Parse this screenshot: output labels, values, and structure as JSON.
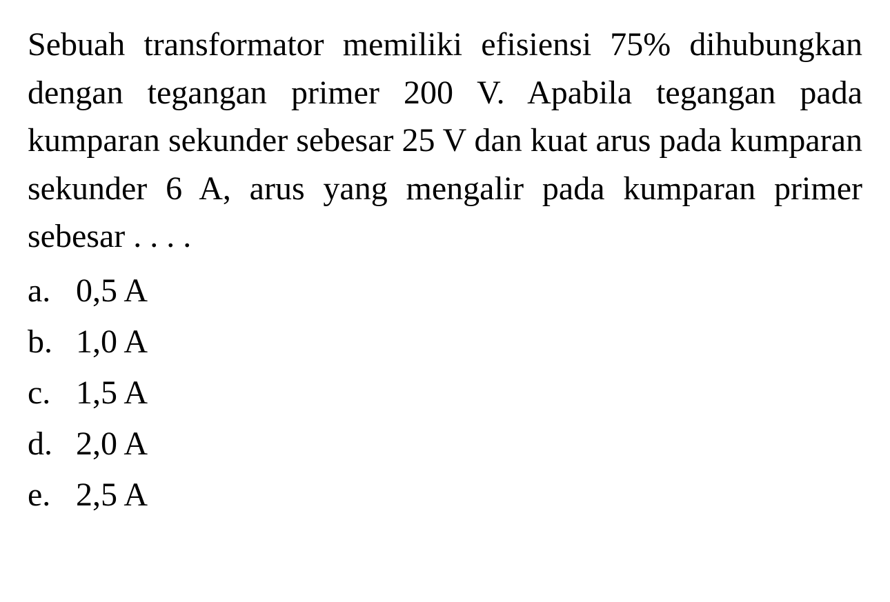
{
  "question": {
    "text": "Sebuah transformator memiliki efisiensi 75% dihubungkan dengan tegangan primer 200 V. Apabila tegangan pada kumparan sekunder sebesar 25 V dan kuat arus pada kumparan sekunder 6 A, arus yang mengalir pada kumparan primer sebesar . . . .",
    "font_size": 48,
    "color": "#000000"
  },
  "options": [
    {
      "letter": "a.",
      "value": "0,5 A"
    },
    {
      "letter": "b.",
      "value": "1,0 A"
    },
    {
      "letter": "c.",
      "value": "1,5 A"
    },
    {
      "letter": "d.",
      "value": "2,0 A"
    },
    {
      "letter": "e.",
      "value": "2,5 A"
    }
  ],
  "styling": {
    "background_color": "#ffffff",
    "text_color": "#000000",
    "font_family": "Times New Roman",
    "question_font_size": 48,
    "option_font_size": 48,
    "line_height": 1.45,
    "text_align": "justify"
  }
}
